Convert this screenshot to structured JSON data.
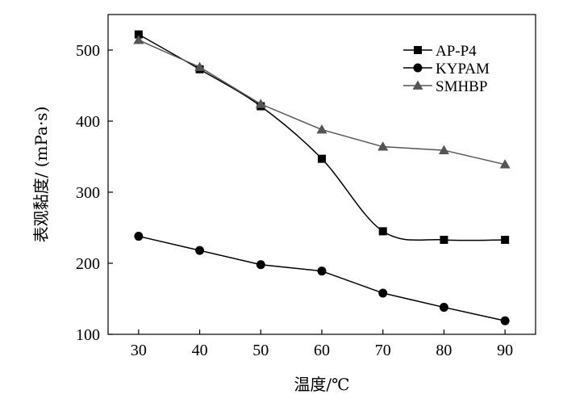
{
  "chart_data": {
    "type": "line",
    "title": "",
    "xlabel": "温度/℃",
    "ylabel": "表观黏度/ (mPa·s)",
    "x": [
      30,
      40,
      50,
      60,
      70,
      80,
      90
    ],
    "xlim": [
      25,
      95
    ],
    "ylim": [
      100,
      550
    ],
    "xticks": [
      30,
      40,
      50,
      60,
      70,
      80,
      90
    ],
    "yticks": [
      100,
      200,
      300,
      400,
      500
    ],
    "grid": false,
    "legend_position": "top-right",
    "series": [
      {
        "name": "AP-P4",
        "marker": "square",
        "color": "#000000",
        "smooth": true,
        "values": [
          522,
          473,
          421,
          347,
          245,
          233,
          233
        ]
      },
      {
        "name": "KYPAM",
        "marker": "circle",
        "color": "#000000",
        "smooth": false,
        "values": [
          238,
          218,
          198,
          189,
          158,
          138,
          119
        ]
      },
      {
        "name": "SMHBP",
        "marker": "triangle",
        "color": "#555555",
        "smooth": false,
        "values": [
          514,
          476,
          424,
          388,
          364,
          359,
          339
        ]
      }
    ]
  }
}
